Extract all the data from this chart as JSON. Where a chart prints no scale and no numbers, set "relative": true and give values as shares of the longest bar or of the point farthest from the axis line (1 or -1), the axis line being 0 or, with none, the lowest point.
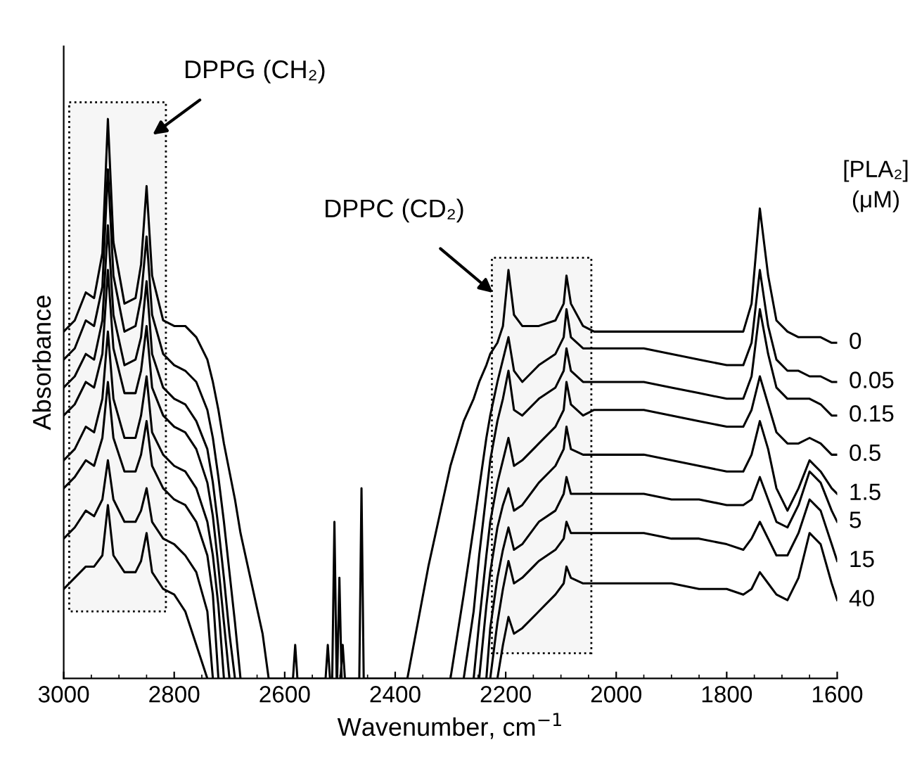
{
  "chart_data": {
    "type": "line",
    "relative": true,
    "xlabel": "Wavenumber, cm$^{−1}$",
    "ylabel": "Absorbance",
    "legend_title": "[PLA₂]\n(μM)",
    "legend": false,
    "grid": false,
    "marker": "none",
    "line_style": "solid",
    "xlim": [
      3000,
      1600
    ],
    "xticks": [
      3000,
      2800,
      2600,
      2400,
      2200,
      2000,
      1800,
      1600
    ],
    "x": [
      3000,
      2980,
      2960,
      2945,
      2930,
      2920,
      2910,
      2890,
      2870,
      2860,
      2850,
      2840,
      2820,
      2800,
      2780,
      2760,
      2740,
      2730,
      2720,
      2710,
      2700,
      2690,
      2680,
      2660,
      2640,
      2629,
      2378,
      2340,
      2300,
      2276,
      2258,
      2248,
      2235,
      2228,
      2215,
      2205,
      2195,
      2185,
      2170,
      2140,
      2110,
      2095,
      2090,
      2082,
      2060,
      2040,
      2000,
      1950,
      1900,
      1850,
      1800,
      1770,
      1755,
      1740,
      1725,
      1710,
      1690,
      1670,
      1650,
      1630,
      1610,
      1600
    ],
    "bands": [
      {
        "axis": "x",
        "from": 2990,
        "to": 2815
      },
      {
        "axis": "x",
        "from": 2225,
        "to": 2045
      }
    ],
    "annotations": [
      "DPPG (CH₂)",
      "DPPC (CD₂)"
    ],
    "series": [
      {
        "name": "0",
        "color": "#000000",
        "x": [
          3000,
          2980,
          2960,
          2945,
          2930,
          2920,
          2910,
          2890,
          2870,
          2860,
          2850,
          2840,
          2820,
          2800,
          2780,
          2760,
          2740,
          2730,
          2720,
          2710,
          2700,
          2690,
          2680,
          2660,
          2640,
          2629,
          2585,
          2581,
          2577,
          2526,
          2522,
          2518,
          2514,
          2510,
          2506,
          2505,
          2501,
          2497,
          2499,
          2495,
          2491,
          2465,
          2461,
          2457,
          2378,
          2340,
          2300,
          2276,
          2258,
          2248,
          2235,
          2228,
          2215,
          2205,
          2195,
          2185,
          2170,
          2140,
          2110,
          2095,
          2090,
          2082,
          2060,
          2040,
          2000,
          1950,
          1900,
          1850,
          1800,
          1770,
          1755,
          1740,
          1725,
          1710,
          1690,
          1670,
          1650,
          1630,
          1610,
          1600
        ],
        "values": [
          0.62,
          0.64,
          0.69,
          0.68,
          0.76,
          1.0,
          0.78,
          0.67,
          0.68,
          0.74,
          0.88,
          0.72,
          0.64,
          0.63,
          0.63,
          0.61,
          0.57,
          0.53,
          0.48,
          0.42,
          0.37,
          0.32,
          0.26,
          0.17,
          0.08,
          0.0,
          0.0,
          0.06,
          0.0,
          0.0,
          0.06,
          0.0,
          0.0,
          0.28,
          0.0,
          0.0,
          0.18,
          0.0,
          0.0,
          0.06,
          0.0,
          0.0,
          0.34,
          0.0,
          0.0,
          0.2,
          0.38,
          0.46,
          0.5,
          0.53,
          0.56,
          0.58,
          0.6,
          0.63,
          0.73,
          0.65,
          0.63,
          0.63,
          0.64,
          0.67,
          0.72,
          0.67,
          0.63,
          0.62,
          0.62,
          0.62,
          0.62,
          0.62,
          0.62,
          0.62,
          0.67,
          0.84,
          0.72,
          0.64,
          0.62,
          0.61,
          0.61,
          0.61,
          0.6,
          0.6
        ]
      },
      {
        "name": "0.05",
        "color": "#000000",
        "values": [
          0.57,
          0.59,
          0.64,
          0.63,
          0.7,
          0.91,
          0.72,
          0.62,
          0.63,
          0.68,
          0.79,
          0.65,
          0.58,
          0.56,
          0.55,
          0.53,
          0.48,
          0.43,
          0.36,
          0.28,
          0.19,
          0.1,
          0.0,
          null,
          null,
          null,
          null,
          null,
          0.0,
          0.15,
          0.27,
          0.34,
          0.43,
          0.47,
          0.53,
          0.57,
          0.61,
          0.55,
          0.53,
          0.56,
          0.58,
          0.61,
          0.66,
          0.61,
          0.59,
          0.59,
          0.59,
          0.59,
          0.58,
          0.57,
          0.56,
          0.56,
          0.6,
          0.73,
          0.63,
          0.57,
          0.55,
          0.55,
          0.54,
          0.54,
          0.53,
          0.53
        ]
      },
      {
        "name": "0.15",
        "color": "#000000",
        "values": [
          0.52,
          0.54,
          0.58,
          0.57,
          0.64,
          0.81,
          0.65,
          0.56,
          0.57,
          0.61,
          0.71,
          0.58,
          0.52,
          0.5,
          0.49,
          0.46,
          0.41,
          0.35,
          0.27,
          0.18,
          0.08,
          0.0,
          null,
          null,
          null,
          null,
          null,
          null,
          null,
          0.0,
          0.12,
          0.22,
          0.33,
          0.39,
          0.46,
          0.5,
          0.55,
          0.48,
          0.47,
          0.5,
          0.52,
          0.55,
          0.59,
          0.55,
          0.53,
          0.53,
          0.53,
          0.53,
          0.52,
          0.51,
          0.5,
          0.5,
          0.54,
          0.66,
          0.58,
          0.52,
          0.5,
          0.5,
          0.5,
          0.49,
          0.47,
          0.47
        ]
      },
      {
        "name": "0.5",
        "color": "#000000",
        "values": [
          0.47,
          0.49,
          0.53,
          0.52,
          0.58,
          0.73,
          0.59,
          0.51,
          0.51,
          0.55,
          0.63,
          0.52,
          0.47,
          0.45,
          0.44,
          0.41,
          0.35,
          0.29,
          0.2,
          0.1,
          0.0,
          null,
          null,
          null,
          null,
          null,
          null,
          null,
          null,
          null,
          0.0,
          0.1,
          0.22,
          0.28,
          0.35,
          0.39,
          0.43,
          0.38,
          0.39,
          0.42,
          0.45,
          0.48,
          0.53,
          0.49,
          0.47,
          0.48,
          0.48,
          0.48,
          0.47,
          0.46,
          0.45,
          0.45,
          0.48,
          0.54,
          0.49,
          0.44,
          0.42,
          0.42,
          0.43,
          0.42,
          0.4,
          0.4
        ]
      },
      {
        "name": "1.5",
        "color": "#000000",
        "values": [
          0.39,
          0.41,
          0.45,
          0.44,
          0.5,
          0.62,
          0.5,
          0.43,
          0.43,
          0.47,
          0.54,
          0.44,
          0.4,
          0.38,
          0.37,
          0.34,
          0.28,
          0.22,
          0.13,
          0.0,
          null,
          null,
          null,
          null,
          null,
          null,
          null,
          null,
          null,
          null,
          null,
          0.0,
          0.13,
          0.19,
          0.27,
          0.31,
          0.34,
          0.3,
          0.31,
          0.35,
          0.38,
          0.41,
          0.45,
          0.41,
          0.4,
          0.4,
          0.4,
          0.4,
          0.39,
          0.38,
          0.37,
          0.37,
          0.4,
          0.46,
          0.41,
          0.34,
          0.3,
          0.34,
          0.39,
          0.37,
          0.34,
          0.33
        ]
      },
      {
        "name": "5",
        "color": "#000000",
        "values": [
          0.34,
          0.36,
          0.39,
          0.38,
          0.43,
          0.53,
          0.43,
          0.37,
          0.37,
          0.4,
          0.46,
          0.38,
          0.34,
          0.32,
          0.31,
          0.28,
          0.22,
          0.15,
          0.0,
          null,
          null,
          null,
          null,
          null,
          null,
          null,
          null,
          null,
          null,
          null,
          null,
          null,
          0.0,
          0.09,
          0.18,
          0.23,
          0.27,
          0.23,
          0.24,
          0.28,
          0.3,
          0.33,
          0.36,
          0.33,
          0.33,
          0.33,
          0.33,
          0.33,
          0.32,
          0.32,
          0.31,
          0.31,
          0.32,
          0.36,
          0.32,
          0.28,
          0.27,
          0.31,
          0.37,
          0.35,
          0.3,
          0.28
        ]
      },
      {
        "name": "15",
        "color": "#000000",
        "values": [
          0.25,
          0.27,
          0.3,
          0.29,
          0.32,
          0.39,
          0.32,
          0.28,
          0.28,
          0.3,
          0.34,
          0.28,
          0.25,
          0.24,
          0.22,
          0.19,
          0.12,
          0.0,
          null,
          null,
          null,
          null,
          null,
          null,
          null,
          null,
          null,
          null,
          null,
          null,
          null,
          null,
          null,
          0.0,
          0.1,
          0.16,
          0.21,
          0.17,
          0.18,
          0.21,
          0.23,
          0.25,
          0.28,
          0.26,
          0.26,
          0.26,
          0.26,
          0.26,
          0.25,
          0.25,
          0.24,
          0.23,
          0.25,
          0.28,
          0.25,
          0.22,
          0.22,
          0.26,
          0.32,
          0.3,
          0.24,
          0.21
        ]
      },
      {
        "name": "40",
        "color": "#000000",
        "values": [
          0.16,
          0.18,
          0.2,
          0.2,
          0.22,
          0.31,
          0.22,
          0.19,
          0.19,
          0.21,
          0.26,
          0.19,
          0.16,
          0.15,
          0.12,
          0.06,
          0.0,
          null,
          null,
          null,
          null,
          null,
          null,
          null,
          null,
          null,
          null,
          null,
          null,
          null,
          null,
          null,
          null,
          null,
          0.0,
          0.06,
          0.11,
          0.08,
          0.09,
          0.12,
          0.15,
          0.17,
          0.2,
          0.18,
          0.17,
          0.17,
          0.17,
          0.17,
          0.17,
          0.16,
          0.16,
          0.15,
          0.16,
          0.19,
          0.17,
          0.15,
          0.14,
          0.18,
          0.26,
          0.24,
          0.17,
          0.14
        ]
      }
    ]
  }
}
